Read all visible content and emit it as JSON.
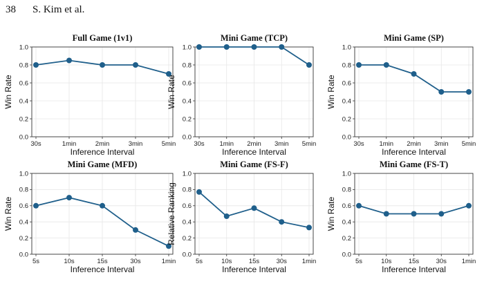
{
  "header": {
    "page_number": "38",
    "running_head": "S. Kim et al."
  },
  "colors": {
    "line": "#1f5f8b",
    "grid": "#e6e6e6",
    "axis": "#333333"
  },
  "chart_data": [
    {
      "type": "line",
      "title": "Full Game (1v1)",
      "xlabel": "Inference Interval",
      "ylabel": "Win Rate",
      "categories": [
        "30s",
        "1min",
        "2min",
        "3min",
        "5min"
      ],
      "values": [
        0.8,
        0.85,
        0.8,
        0.8,
        0.7
      ],
      "ylim": [
        0,
        1.0
      ],
      "yticks": [
        "0.0",
        "0.2",
        "0.4",
        "0.6",
        "0.8",
        "1.0"
      ],
      "grid": true
    },
    {
      "type": "line",
      "title": "Mini Game (TCP)",
      "xlabel": "Inference Interval",
      "ylabel": "Win Rate",
      "categories": [
        "30s",
        "1min",
        "2min",
        "3min",
        "5min"
      ],
      "values": [
        1.0,
        1.0,
        1.0,
        1.0,
        0.8
      ],
      "ylim": [
        0,
        1.0
      ],
      "yticks": [
        "0.0",
        "0.2",
        "0.4",
        "0.6",
        "0.8",
        "1.0"
      ],
      "grid": true
    },
    {
      "type": "line",
      "title": "Mini Game (SP)",
      "xlabel": "Inference Interval",
      "ylabel": "Win Rate",
      "categories": [
        "30s",
        "1min",
        "2min",
        "3min",
        "5min"
      ],
      "values": [
        0.8,
        0.8,
        0.7,
        0.5,
        0.5
      ],
      "ylim": [
        0,
        1.0
      ],
      "yticks": [
        "0.0",
        "0.2",
        "0.4",
        "0.6",
        "0.8",
        "1.0"
      ],
      "grid": true
    },
    {
      "type": "line",
      "title": "Mini Game (MFD)",
      "xlabel": "Inference Interval",
      "ylabel": "Win Rate",
      "categories": [
        "5s",
        "10s",
        "15s",
        "30s",
        "1min"
      ],
      "values": [
        0.6,
        0.7,
        0.6,
        0.3,
        0.1
      ],
      "ylim": [
        0,
        1.0
      ],
      "yticks": [
        "0.0",
        "0.2",
        "0.4",
        "0.6",
        "0.8",
        "1.0"
      ],
      "grid": true
    },
    {
      "type": "line",
      "title": "Mini Game (FS-F)",
      "xlabel": "Inference Interval",
      "ylabel": "Relative Ranking",
      "categories": [
        "5s",
        "10s",
        "15s",
        "30s",
        "1min"
      ],
      "values": [
        0.77,
        0.47,
        0.57,
        0.4,
        0.33
      ],
      "ylim": [
        0,
        1.0
      ],
      "yticks": [
        "0.0",
        "0.2",
        "0.4",
        "0.6",
        "0.8",
        "1.0"
      ],
      "grid": true
    },
    {
      "type": "line",
      "title": "Mini Game (FS-T)",
      "xlabel": "Inference Interval",
      "ylabel": "Win Rate",
      "categories": [
        "5s",
        "10s",
        "15s",
        "30s",
        "1min"
      ],
      "values": [
        0.6,
        0.5,
        0.5,
        0.5,
        0.6
      ],
      "ylim": [
        0,
        1.0
      ],
      "yticks": [
        "0.0",
        "0.2",
        "0.4",
        "0.6",
        "0.8",
        "1.0"
      ],
      "grid": true
    }
  ]
}
